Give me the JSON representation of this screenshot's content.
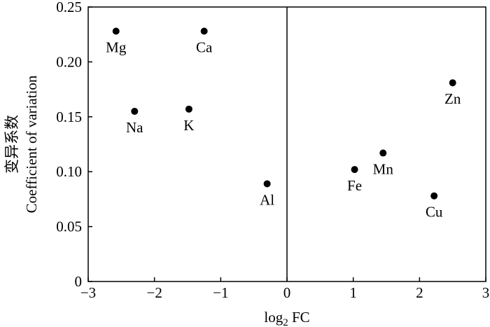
{
  "chart_data": {
    "type": "scatter",
    "xlabel_main": "log",
    "xlabel_sub": "2",
    "xlabel_rest": " FC",
    "ylabel_cn": "变异系数",
    "ylabel_en": "Coefficient of variation",
    "xlim": [
      -3,
      3
    ],
    "ylim": [
      0,
      0.25
    ],
    "xticks": [
      -3,
      -2,
      -1,
      0,
      1,
      2,
      3
    ],
    "xtick_labels": [
      "−3",
      "−2",
      "−1",
      "0",
      "1",
      "2",
      "3"
    ],
    "yticks": [
      0,
      0.05,
      0.1,
      0.15,
      0.2,
      0.25
    ],
    "ytick_labels": [
      "0",
      "0.05",
      "0.10",
      "0.15",
      "0.20",
      "0.25"
    ],
    "grid": false,
    "vertical_reference_line_x": 0,
    "points": [
      {
        "label": "Mg",
        "x": -2.58,
        "y": 0.228
      },
      {
        "label": "Ca",
        "x": -1.25,
        "y": 0.228
      },
      {
        "label": "Na",
        "x": -2.3,
        "y": 0.155
      },
      {
        "label": "K",
        "x": -1.48,
        "y": 0.157
      },
      {
        "label": "Al",
        "x": -0.3,
        "y": 0.089
      },
      {
        "label": "Fe",
        "x": 1.02,
        "y": 0.102
      },
      {
        "label": "Mn",
        "x": 1.45,
        "y": 0.117
      },
      {
        "label": "Cu",
        "x": 2.22,
        "y": 0.078
      },
      {
        "label": "Zn",
        "x": 2.5,
        "y": 0.181
      }
    ]
  }
}
